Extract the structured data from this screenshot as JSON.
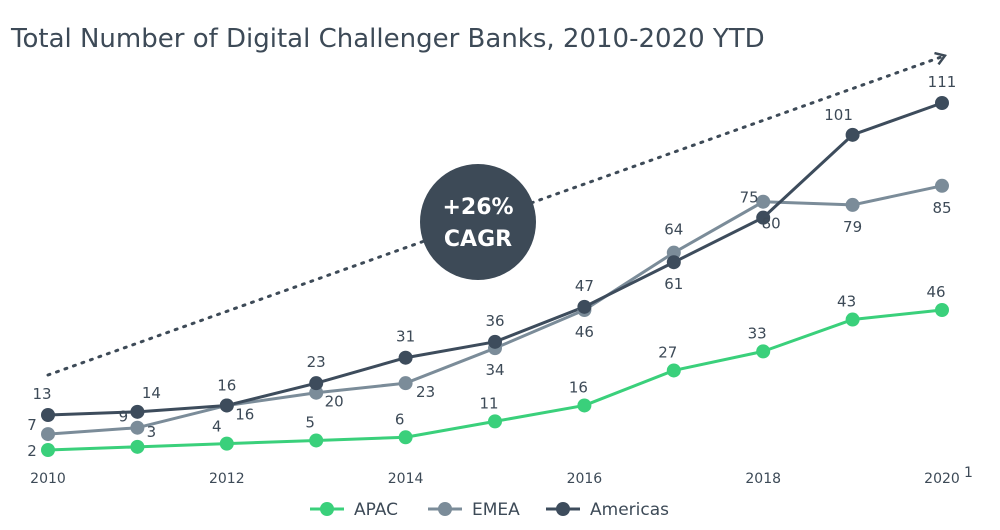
{
  "chart_data": {
    "type": "line",
    "title": "Total Number of Digital Challenger Banks, 2010-2020 YTD",
    "x": [
      2010,
      2011,
      2012,
      2013,
      2014,
      2015,
      2016,
      2017,
      2018,
      2019,
      2020
    ],
    "x_tick_labels": [
      "2010",
      "2012",
      "2014",
      "2016",
      "2018",
      "2020"
    ],
    "x_tick_footnote": "1",
    "ylim": [
      0,
      111
    ],
    "grid": false,
    "legend_position": "bottom",
    "series": [
      {
        "name": "APAC",
        "color": "#3ad07b",
        "values": [
          2,
          3,
          4,
          5,
          6,
          11,
          16,
          27,
          33,
          43,
          46
        ]
      },
      {
        "name": "EMEA",
        "color": "#7b8c99",
        "values": [
          7,
          9,
          16,
          20,
          23,
          34,
          46,
          64,
          80,
          79,
          85
        ]
      },
      {
        "name": "Americas",
        "color": "#3d4c5c",
        "values": [
          13,
          14,
          16,
          23,
          31,
          36,
          47,
          61,
          75,
          101,
          111
        ]
      }
    ],
    "annotations": [
      {
        "text_line1": "+26%",
        "text_line2": "CAGR",
        "type": "badge"
      },
      {
        "type": "dotted-trend-arrow"
      }
    ]
  }
}
